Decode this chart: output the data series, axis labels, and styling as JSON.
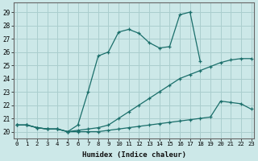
{
  "title": "",
  "xlabel": "Humidex (Indice chaleur)",
  "ylabel": "",
  "bg_color": "#cce8e8",
  "grid_color": "#aacece",
  "line_color": "#1a6e6a",
  "x_ticks": [
    0,
    1,
    2,
    3,
    4,
    5,
    6,
    7,
    8,
    9,
    10,
    11,
    12,
    13,
    14,
    15,
    16,
    17,
    18,
    19,
    20,
    21,
    22,
    23
  ],
  "y_ticks": [
    20,
    21,
    22,
    23,
    24,
    25,
    26,
    27,
    28,
    29
  ],
  "ylim": [
    19.5,
    29.7
  ],
  "xlim": [
    -0.3,
    23.3
  ],
  "series": [
    [
      20.5,
      20.5,
      20.3,
      20.2,
      20.2,
      20.0,
      20.1,
      20.2,
      20.3,
      20.5,
      21.0,
      21.5,
      22.0,
      22.5,
      23.0,
      23.5,
      24.0,
      24.3,
      24.6,
      24.9,
      25.2,
      25.4,
      25.5,
      25.5
    ],
    [
      20.5,
      20.5,
      20.3,
      20.2,
      20.2,
      20.0,
      20.5,
      23.0,
      25.7,
      26.0,
      27.5,
      27.7,
      27.4,
      26.7,
      26.3,
      26.4,
      28.8,
      29.0,
      25.3,
      null,
      null,
      null,
      null,
      null
    ],
    [
      20.5,
      20.5,
      20.3,
      20.2,
      20.2,
      20.0,
      20.0,
      20.0,
      20.0,
      20.1,
      20.2,
      20.3,
      20.4,
      20.5,
      20.6,
      20.7,
      20.8,
      20.9,
      21.0,
      21.1,
      22.3,
      22.2,
      22.1,
      21.7
    ]
  ]
}
